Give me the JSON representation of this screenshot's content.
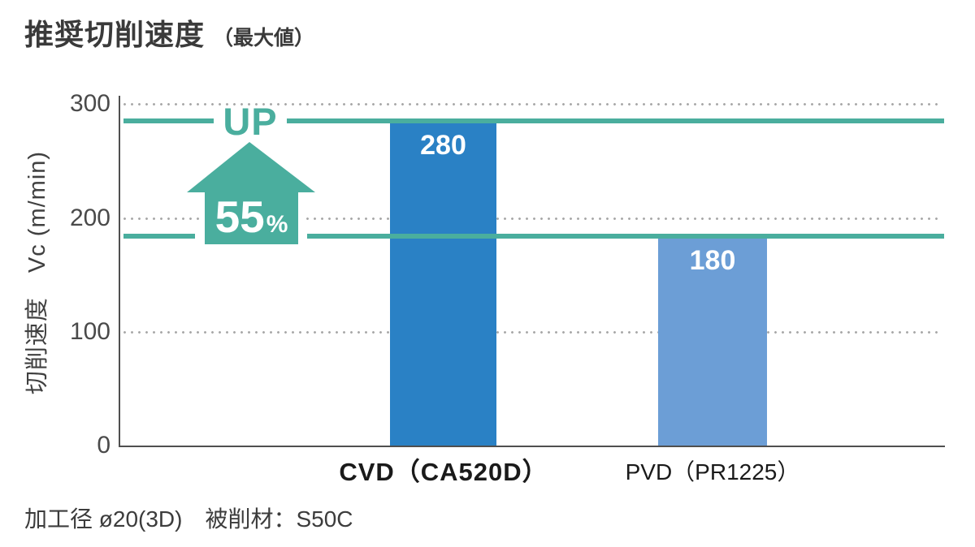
{
  "page": {
    "title_main": "推奨切削速度",
    "title_sub": "（最大値）",
    "footer_note": "加工径 ø20(3D)　被削材：S50C"
  },
  "chart_data": {
    "type": "bar",
    "title": "推奨切削速度（最大値）",
    "ylabel": "切削速度　Vc (m/min)",
    "yticks": [
      "300",
      "200",
      "100",
      "0"
    ],
    "ylim": [
      0,
      300
    ],
    "grid": "horizontal dotted lines at 100, 200, 300",
    "legend_position": "none",
    "categories": [
      "CVD（CA520D）",
      "PVD（PR1225）"
    ],
    "values": [
      280,
      180
    ],
    "data_labels": [
      "280",
      "180"
    ],
    "bar_colors": [
      "#2a81c5",
      "#6c9ed6"
    ],
    "reference_lines": [
      {
        "value": 280,
        "color": "#4aae9e"
      },
      {
        "value": 180,
        "color": "#4aae9e"
      }
    ],
    "annotation": {
      "up_text": "UP",
      "percent_number": "55",
      "percent_sign": "%",
      "color": "#4aae9e"
    },
    "note": "加工径 ø20(3D)　被削材：S50C"
  },
  "colors": {
    "bar_cvd": "#2a81c5",
    "bar_pvd": "#6c9ed6",
    "accent_teal": "#4aae9e",
    "axis": "#4f4f4f",
    "grid_dots": "#a9a9a9",
    "title_text": "#3a3a3a"
  }
}
